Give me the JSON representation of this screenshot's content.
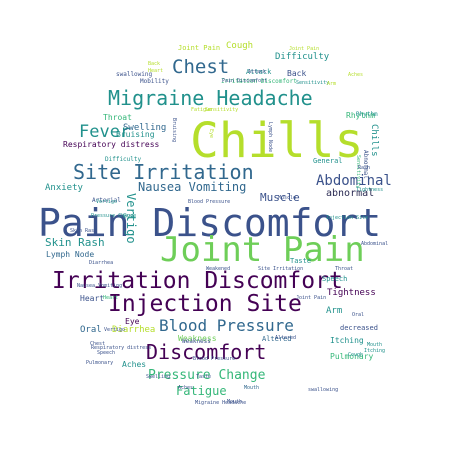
{
  "colors": {
    "background": "#ffffff",
    "purple": "#440154",
    "indigo": "#3b528b",
    "blue": "#31688e",
    "teal": "#21918c",
    "green": "#35b779",
    "lime": "#6ece58",
    "yellow": "#b5de2b",
    "dark": "#2c2c54"
  },
  "words": [
    {
      "text": "Pain Discomfort",
      "color": "#3b528b"
    },
    {
      "text": "Joint Pain",
      "color": "#6ece58"
    },
    {
      "text": "Chills",
      "color": "#b5de2b"
    },
    {
      "text": "Irritation Discomfort",
      "color": "#440154"
    },
    {
      "text": "Injection Site",
      "color": "#440154"
    },
    {
      "text": "Migraine Headache",
      "color": "#21918c"
    },
    {
      "text": "Site Irritation",
      "color": "#31688e"
    },
    {
      "text": "Discomfort",
      "color": "#440154"
    },
    {
      "text": "Blood Pressure",
      "color": "#31688e"
    },
    {
      "text": "Chest",
      "color": "#31688e"
    },
    {
      "text": "Fever",
      "color": "#21918c"
    },
    {
      "text": "Abdominal",
      "color": "#3b528b"
    },
    {
      "text": "Nausea Vomiting",
      "color": "#31688e"
    },
    {
      "text": "Pressure Change",
      "color": "#35b779"
    },
    {
      "text": "Fatigue",
      "color": "#35b779"
    },
    {
      "text": "Skin Rash",
      "color": "#21918c"
    },
    {
      "text": "Vertigo",
      "color": "#21918c"
    },
    {
      "text": "Muscle",
      "color": "#3b528b"
    },
    {
      "text": "abnormal",
      "color": "#2c2c54"
    },
    {
      "text": "Respiratory distress",
      "color": "#440154"
    },
    {
      "text": "Anxiety",
      "color": "#21918c"
    },
    {
      "text": "Lymph Node",
      "color": "#31688e"
    },
    {
      "text": "Swelling",
      "color": "#31688e"
    },
    {
      "text": "Bruising",
      "color": "#21918c"
    },
    {
      "text": "Throat",
      "color": "#35b779"
    },
    {
      "text": "Cough",
      "color": "#b5de2b"
    },
    {
      "text": "Difficulty",
      "color": "#21918c"
    },
    {
      "text": "Back",
      "color": "#3b528b"
    },
    {
      "text": "Attack",
      "color": "#21918c"
    },
    {
      "text": "Tightness",
      "color": "#440154"
    },
    {
      "text": "Arm",
      "color": "#21918c"
    },
    {
      "text": "Heart",
      "color": "#3b528b"
    },
    {
      "text": "Oral",
      "color": "#31688e"
    },
    {
      "text": "Diarrhea",
      "color": "#b5de2b"
    },
    {
      "text": "Eye",
      "color": "#440154"
    },
    {
      "text": "Weakness",
      "color": "#6ece58"
    },
    {
      "text": "Itching",
      "color": "#21918c"
    },
    {
      "text": "Pulmonary",
      "color": "#35b779"
    },
    {
      "text": "Aches",
      "color": "#21918c"
    },
    {
      "text": "Rhythm",
      "color": "#35b779"
    },
    {
      "text": "General",
      "color": "#21918c"
    },
    {
      "text": "Speech",
      "color": "#21918c"
    },
    {
      "text": "decreased",
      "color": "#3b528b"
    },
    {
      "text": "Altered",
      "color": "#31688e"
    },
    {
      "text": "Joint Pain",
      "color": "#b5de2b"
    },
    {
      "text": "Irritation Discomfort",
      "color": "#35b779"
    },
    {
      "text": "Mobility",
      "color": "#3b528b"
    },
    {
      "text": "swallowing",
      "color": "#3b528b"
    },
    {
      "text": "Arterial",
      "color": "#3b528b"
    },
    {
      "text": "Taste",
      "color": "#21918c"
    },
    {
      "text": "Mouth",
      "color": "#31688e"
    },
    {
      "text": "Chills",
      "color": "#21918c"
    },
    {
      "text": "Sensitivity",
      "color": "#35b779"
    },
    {
      "text": "Heart",
      "color": "#35b779"
    },
    {
      "text": "Rash",
      "color": "#3b528b"
    },
    {
      "text": "Aches",
      "color": "#3b528b"
    },
    {
      "text": "Pain Discomfort",
      "color": "#3b528b"
    },
    {
      "text": "Skin Rash",
      "color": "#3b528b"
    },
    {
      "text": "Weakness",
      "color": "#3b528b"
    },
    {
      "text": "Abdominal",
      "color": "#3b528b"
    },
    {
      "text": "Altered",
      "color": "#3b528b"
    },
    {
      "text": "Muscle",
      "color": "#3b528b"
    },
    {
      "text": "Bruising",
      "color": "#3b528b"
    },
    {
      "text": "Lymph Node",
      "color": "#3b528b"
    },
    {
      "text": "Attack",
      "color": "#3b528b"
    },
    {
      "text": "Difficulty",
      "color": "#21918c"
    },
    {
      "text": "Rhythm",
      "color": "#21918c"
    },
    {
      "text": "Pressure Change",
      "color": "#21918c"
    },
    {
      "text": "Sensitivity",
      "color": "#21918c"
    },
    {
      "text": "Eye",
      "color": "#21918c"
    },
    {
      "text": "Blood Pressure",
      "color": "#3b528b"
    },
    {
      "text": "Tightness",
      "color": "#21918c"
    },
    {
      "text": "Mouth",
      "color": "#21918c"
    },
    {
      "text": "Itching",
      "color": "#21918c"
    },
    {
      "text": "Injection Site",
      "color": "#21918c"
    },
    {
      "text": "Vertigo",
      "color": "#21918c"
    },
    {
      "text": "Abnormal",
      "color": "#3b528b"
    },
    {
      "text": "Diarrhea",
      "color": "#3b528b"
    },
    {
      "text": "Nausea Vomiting",
      "color": "#3b528b"
    },
    {
      "text": "Weakened",
      "color": "#3b528b"
    },
    {
      "text": "Site Irritation",
      "color": "#3b528b"
    },
    {
      "text": "Throat",
      "color": "#3b528b"
    },
    {
      "text": "Joint Pain",
      "color": "#3b528b"
    },
    {
      "text": "Oral",
      "color": "#3b528b"
    },
    {
      "text": "Respiratory distress",
      "color": "#3b528b"
    },
    {
      "text": "Cough",
      "color": "#21918c"
    },
    {
      "text": "Pulmonary",
      "color": "#3b528b"
    },
    {
      "text": "Chest",
      "color": "#3b528b"
    },
    {
      "text": "Speech",
      "color": "#3b528b"
    },
    {
      "text": "Vertigo",
      "color": "#3b528b"
    },
    {
      "text": "Blood Pressure",
      "color": "#3b528b"
    },
    {
      "text": "Swelling",
      "color": "#3b528b"
    },
    {
      "text": "swallowing",
      "color": "#3b528b"
    },
    {
      "text": "Taste",
      "color": "#3b528b"
    },
    {
      "text": "Migraine Headache",
      "color": "#3b528b"
    },
    {
      "text": "Mouth",
      "color": "#3b528b"
    },
    {
      "text": "Joint Pain",
      "color": "#b5de2b"
    },
    {
      "text": "Aches",
      "color": "#b5de2b"
    },
    {
      "text": "Arm",
      "color": "#b5de2b"
    },
    {
      "text": "Back",
      "color": "#b5de2b"
    },
    {
      "text": "Heart",
      "color": "#b5de2b"
    },
    {
      "text": "Fatigue",
      "color": "#b5de2b"
    },
    {
      "text": "Sensitivity",
      "color": "#b5de2b"
    },
    {
      "text": "Eye",
      "color": "#b5de2b"
    }
  ]
}
